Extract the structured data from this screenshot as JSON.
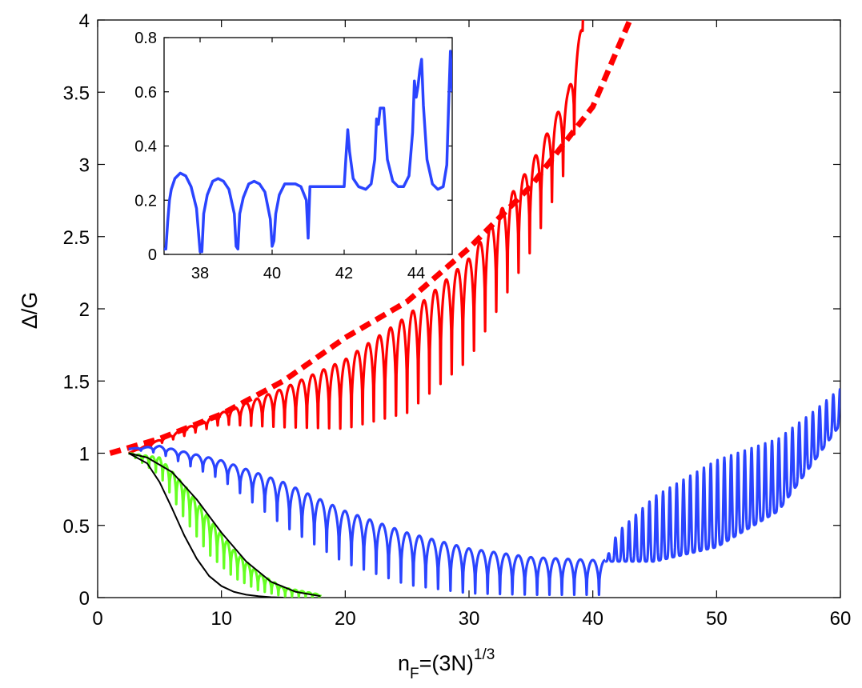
{
  "chart_data": [
    {
      "type": "line",
      "title": "",
      "xlabel": {
        "base": "n",
        "sub": "F",
        "mid": "=(3N)",
        "sup": "1/3"
      },
      "ylabel": "Δ/G",
      "xlim": [
        0,
        60
      ],
      "ylim": [
        0,
        4
      ],
      "xticks": [
        "0",
        "10",
        "20",
        "30",
        "40",
        "50",
        "60"
      ],
      "yticks": [
        "0",
        "0.5",
        "1",
        "1.5",
        "2",
        "2.5",
        "3",
        "3.5",
        "4"
      ],
      "grid": false,
      "legend": "none",
      "series": [
        {
          "color": "#ff0000",
          "style": "dashed",
          "description_values": "smooth envelope",
          "x": [
            1,
            5,
            10,
            15,
            20,
            25,
            30,
            35,
            38,
            40,
            43
          ],
          "y": [
            1.0,
            1.1,
            1.27,
            1.5,
            1.8,
            2.05,
            2.42,
            2.85,
            3.18,
            3.4,
            4.0
          ]
        },
        {
          "color": "#ff0000",
          "style": "oscillating",
          "x_start": 2.5,
          "x_end": 39.2,
          "period": 0.9,
          "peak_x": [
            2.5,
            10,
            15,
            20,
            25,
            30,
            35,
            38,
            39.2
          ],
          "peak_y": [
            1.0,
            1.28,
            1.45,
            1.65,
            1.95,
            2.35,
            3.0,
            3.5,
            4.0
          ],
          "trough_x": [
            2.5,
            10,
            15,
            20,
            25,
            30,
            35,
            38,
            39.2
          ],
          "trough_y": [
            1.0,
            1.2,
            1.18,
            1.17,
            1.28,
            1.65,
            2.4,
            3.0,
            3.5
          ]
        },
        {
          "color": "#2a44ff",
          "style": "oscillating",
          "x_start": 2.5,
          "x_end": 41.0,
          "period": 1.0,
          "peak_x": [
            2.5,
            5,
            10,
            15,
            20,
            25,
            30,
            35,
            40,
            41
          ],
          "peak_y": [
            1.03,
            1.05,
            0.95,
            0.8,
            0.6,
            0.45,
            0.34,
            0.28,
            0.26,
            0.26
          ],
          "trough_x": [
            2.5,
            5,
            10,
            15,
            20,
            25,
            30,
            35,
            40,
            41
          ],
          "trough_y": [
            1.03,
            1.0,
            0.82,
            0.5,
            0.24,
            0.09,
            0.03,
            0.02,
            0.02,
            0.02
          ]
        },
        {
          "color": "#2a44ff",
          "style": "spiky",
          "x_start": 41.0,
          "x_end": 60.0,
          "period": 0.55,
          "base_x": [
            41,
            42,
            45,
            50,
            55,
            60
          ],
          "base_y": [
            0.25,
            0.25,
            0.25,
            0.35,
            0.6,
            1.2
          ],
          "peak_x": [
            41,
            42,
            45,
            50,
            55,
            58,
            60
          ],
          "peak_y": [
            0.25,
            0.45,
            0.7,
            0.95,
            1.1,
            1.3,
            1.45
          ]
        },
        {
          "color": "#66ff22",
          "style": "oscillating",
          "x_start": 2.5,
          "x_end": 18.0,
          "period": 0.55,
          "peak_x": [
            2.5,
            5,
            7,
            9,
            11,
            13,
            15,
            18
          ],
          "peak_y": [
            1.0,
            0.97,
            0.78,
            0.55,
            0.33,
            0.17,
            0.07,
            0.02
          ],
          "trough_x": [
            2.5,
            5,
            7,
            9,
            11,
            13,
            15,
            18
          ],
          "trough_y": [
            1.0,
            0.85,
            0.55,
            0.3,
            0.14,
            0.05,
            0.01,
            0.0
          ]
        },
        {
          "color": "#000000",
          "style": "solid",
          "x": [
            2.5,
            4,
            5,
            6,
            7,
            8,
            9,
            10,
            11,
            12,
            13,
            14,
            15
          ],
          "y": [
            1.0,
            0.93,
            0.8,
            0.62,
            0.43,
            0.27,
            0.15,
            0.08,
            0.04,
            0.02,
            0.01,
            0.003,
            0.0
          ]
        },
        {
          "color": "#000000",
          "style": "solid",
          "x": [
            2.5,
            4,
            6,
            8,
            10,
            12,
            14,
            16,
            18
          ],
          "y": [
            1.0,
            0.97,
            0.87,
            0.68,
            0.45,
            0.25,
            0.11,
            0.04,
            0.01
          ]
        }
      ]
    },
    {
      "type": "line",
      "title": "",
      "xlabel": "",
      "ylabel": "",
      "xlim": [
        37,
        45
      ],
      "ylim": [
        0,
        0.8
      ],
      "xticks": [
        "38",
        "40",
        "42",
        "44"
      ],
      "yticks": [
        "0",
        "0.2",
        "0.4",
        "0.6",
        "0.8"
      ],
      "grid": false,
      "series": [
        {
          "color": "#2a44ff",
          "style": "solid",
          "x": [
            37.0,
            37.05,
            37.1,
            37.15,
            37.2,
            37.3,
            37.45,
            37.6,
            37.75,
            37.9,
            38.0,
            38.05,
            38.1,
            38.2,
            38.35,
            38.5,
            38.65,
            38.8,
            38.95,
            39.0,
            39.05,
            39.1,
            39.2,
            39.35,
            39.5,
            39.65,
            39.8,
            39.95,
            40.0,
            40.05,
            40.1,
            40.2,
            40.35,
            40.5,
            40.65,
            40.8,
            40.95,
            41.0,
            41.05,
            41.2,
            41.5,
            41.8,
            42.0,
            42.05,
            42.1,
            42.15,
            42.25,
            42.4,
            42.6,
            42.75,
            42.85,
            42.9,
            42.95,
            43.0,
            43.05,
            43.1,
            43.2,
            43.35,
            43.5,
            43.65,
            43.8,
            43.9,
            43.95,
            44.0,
            44.05,
            44.1,
            44.15,
            44.2,
            44.3,
            44.45,
            44.6,
            44.75,
            44.85,
            44.9,
            44.95,
            45.0
          ],
          "y": [
            0.02,
            0.02,
            0.12,
            0.2,
            0.24,
            0.28,
            0.3,
            0.29,
            0.25,
            0.17,
            0.01,
            0.01,
            0.15,
            0.22,
            0.27,
            0.28,
            0.27,
            0.24,
            0.15,
            0.03,
            0.02,
            0.15,
            0.21,
            0.26,
            0.27,
            0.26,
            0.23,
            0.13,
            0.03,
            0.05,
            0.15,
            0.22,
            0.26,
            0.26,
            0.26,
            0.25,
            0.2,
            0.06,
            0.25,
            0.25,
            0.25,
            0.25,
            0.25,
            0.36,
            0.46,
            0.38,
            0.28,
            0.25,
            0.24,
            0.26,
            0.35,
            0.5,
            0.48,
            0.54,
            0.54,
            0.54,
            0.35,
            0.27,
            0.25,
            0.25,
            0.29,
            0.45,
            0.64,
            0.58,
            0.62,
            0.68,
            0.72,
            0.55,
            0.35,
            0.26,
            0.24,
            0.25,
            0.33,
            0.55,
            0.75,
            0.6
          ]
        }
      ]
    }
  ]
}
